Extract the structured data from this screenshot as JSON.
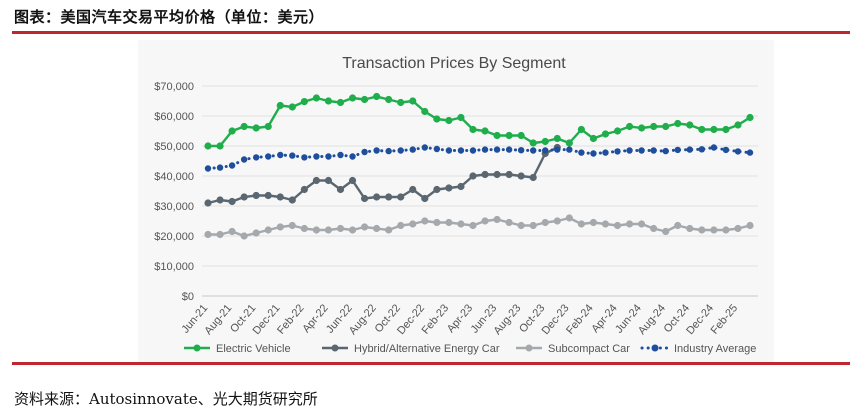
{
  "figure": {
    "title": "图表：美国汽车交易平均价格（单位：美元）",
    "source": "资料来源：Autosinnovate、光大期货研究所",
    "accent_color": "#c0262d"
  },
  "chart_data": {
    "type": "line",
    "title": "Transaction Prices By Segment",
    "xlabel": "",
    "ylabel": "",
    "ylim": [
      0,
      70000
    ],
    "yticks": [
      "$0",
      "$10,000",
      "$20,000",
      "$30,000",
      "$40,000",
      "$50,000",
      "$60,000",
      "$70,000"
    ],
    "grid": true,
    "legend_position": "bottom",
    "x": [
      "Jun-21",
      "Jul-21",
      "Aug-21",
      "Sep-21",
      "Oct-21",
      "Nov-21",
      "Dec-21",
      "Jan-22",
      "Feb-22",
      "Mar-22",
      "Apr-22",
      "May-22",
      "Jun-22",
      "Jul-22",
      "Aug-22",
      "Sep-22",
      "Oct-22",
      "Nov-22",
      "Dec-22",
      "Jan-23",
      "Feb-23",
      "Mar-23",
      "Apr-23",
      "May-23",
      "Jun-23",
      "Jul-23",
      "Aug-23",
      "Sep-23",
      "Oct-23",
      "Nov-23",
      "Dec-23",
      "Jan-24",
      "Feb-24",
      "Mar-24",
      "Apr-24",
      "May-24",
      "Jun-24",
      "Jul-24",
      "Aug-24",
      "Sep-24",
      "Oct-24",
      "Nov-24",
      "Dec-24",
      "Jan-25",
      "Feb-25",
      "Mar-25"
    ],
    "xtick_labels": [
      "Jun-21",
      "Aug-21",
      "Oct-21",
      "Dec-21",
      "Feb-22",
      "Apr-22",
      "Jun-22",
      "Aug-22",
      "Oct-22",
      "Dec-22",
      "Feb-23",
      "Apr-23",
      "Jun-23",
      "Aug-23",
      "Oct-23",
      "Dec-23",
      "Feb-24",
      "Apr-24",
      "Jun-24",
      "Aug-24",
      "Oct-24",
      "Dec-24",
      "Feb-25"
    ],
    "series": [
      {
        "name": "Electric Vehicle",
        "color": "#1fae4b",
        "style": "solid",
        "values": [
          50000,
          50000,
          55000,
          56500,
          56000,
          56500,
          63500,
          63000,
          64800,
          66000,
          65000,
          64500,
          66000,
          65500,
          66500,
          65500,
          64500,
          65000,
          61500,
          59000,
          58500,
          59500,
          55500,
          55000,
          53500,
          53500,
          53500,
          51000,
          51500,
          52500,
          51000,
          55500,
          52500,
          54000,
          55000,
          56500,
          56000,
          56500,
          56500,
          57500,
          57000,
          55500,
          55500,
          55500,
          57000,
          59500
        ]
      },
      {
        "name": "Hybrid/Alternative Energy Car",
        "color": "#5b6770",
        "style": "solid",
        "values": [
          31000,
          32000,
          31500,
          33000,
          33500,
          33500,
          33000,
          32000,
          35500,
          38500,
          38500,
          35500,
          38500,
          32500,
          33000,
          33000,
          33000,
          35500,
          32500,
          35500,
          36000,
          36500,
          40000,
          40500,
          40500,
          40500,
          40000,
          39500,
          47500,
          49500,
          null,
          null,
          null,
          null,
          null,
          null,
          null,
          null,
          null,
          null,
          null,
          null,
          null,
          null,
          null,
          null
        ]
      },
      {
        "name": "Subcompact Car",
        "color": "#a5a9ac",
        "style": "solid",
        "values": [
          20500,
          20500,
          21500,
          20000,
          21000,
          22000,
          23000,
          23500,
          22500,
          22000,
          22000,
          22500,
          22000,
          23000,
          22500,
          22000,
          23500,
          24000,
          25000,
          24500,
          24500,
          24000,
          23500,
          25000,
          25500,
          24500,
          23500,
          23500,
          24500,
          25000,
          26000,
          24000,
          24500,
          24000,
          23500,
          24000,
          24000,
          22500,
          21500,
          23500,
          22500,
          22000,
          22000,
          22000,
          22500,
          23500
        ]
      },
      {
        "name": "Industry Average",
        "color": "#1f4e9c",
        "style": "dotted",
        "values": [
          42500,
          42800,
          43500,
          45500,
          46200,
          46500,
          47000,
          46800,
          46200,
          46500,
          46500,
          47000,
          46500,
          48000,
          48500,
          48300,
          48500,
          48800,
          49500,
          49000,
          48500,
          48500,
          48500,
          48800,
          48800,
          48800,
          48600,
          48500,
          48500,
          48800,
          48800,
          47800,
          47500,
          47800,
          48200,
          48500,
          48500,
          48500,
          48300,
          48700,
          48800,
          48900,
          49500,
          48700,
          48200,
          47800
        ]
      }
    ]
  }
}
